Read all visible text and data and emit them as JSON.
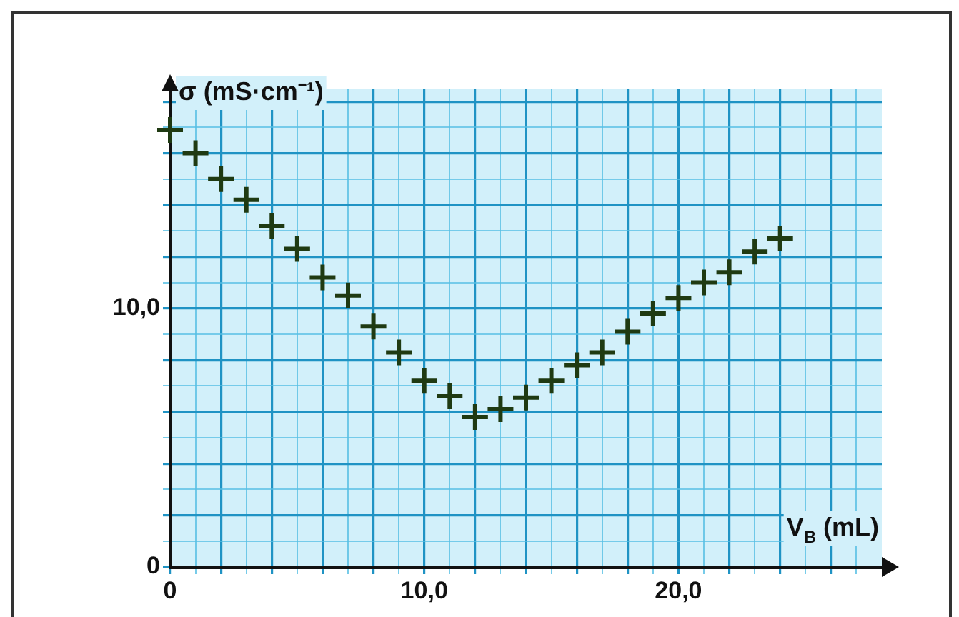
{
  "chart_data": {
    "type": "scatter",
    "xlabel": "V$_{B}$ (mL)",
    "ylabel": "σ (mS·cm⁻¹)",
    "x": [
      0,
      1,
      2,
      3,
      4,
      5,
      6,
      7,
      8,
      9,
      10,
      11,
      12,
      13,
      14,
      15,
      16,
      17,
      18,
      19,
      20,
      21,
      22,
      23,
      24
    ],
    "series": [
      {
        "color": "#1f3a12",
        "values": [
          16.9,
          16.0,
          15.0,
          14.2,
          13.2,
          12.3,
          11.2,
          10.5,
          9.3,
          8.3,
          7.2,
          6.6,
          5.8,
          6.1,
          6.55,
          7.2,
          7.8,
          8.3,
          9.1,
          9.8,
          10.4,
          11.0,
          11.4,
          12.2,
          12.7
        ]
      }
    ],
    "xlim": [
      0,
      28
    ],
    "ylim": [
      0,
      18.5
    ],
    "xticks": [
      0,
      {
        "value": 1,
        "label": null
      },
      {
        "value": 2,
        "label": null
      },
      {
        "value": 3,
        "label": null
      },
      {
        "value": 4,
        "label": null
      },
      {
        "value": 5,
        "label": null
      },
      {
        "value": 6,
        "label": null
      },
      {
        "value": 7,
        "label": null
      },
      {
        "value": 8,
        "label": null
      },
      {
        "value": 9,
        "label": null
      },
      {
        "value": 10,
        "label": "10,0"
      },
      {
        "value": 11,
        "label": null
      },
      {
        "value": 12,
        "label": null
      },
      {
        "value": 13,
        "label": null
      },
      {
        "value": 14,
        "label": null
      },
      {
        "value": 15,
        "label": null
      },
      {
        "value": 16,
        "label": null
      },
      {
        "value": 17,
        "label": null
      },
      {
        "value": 18,
        "label": null
      },
      {
        "value": 19,
        "label": null
      },
      {
        "value": 20,
        "label": "20,0"
      },
      {
        "value": 21,
        "label": null
      },
      {
        "value": 22,
        "label": null
      },
      {
        "value": 23,
        "label": null
      },
      {
        "value": 24,
        "label": null
      },
      {
        "value": 25,
        "label": null
      },
      {
        "value": 26,
        "label": null
      },
      {
        "value": 27,
        "label": null
      }
    ],
    "yticks": [
      0,
      {
        "value": 1,
        "label": null
      },
      {
        "value": 2,
        "label": null
      },
      {
        "value": 3,
        "label": null
      },
      {
        "value": 4,
        "label": null
      },
      {
        "value": 5,
        "label": null
      },
      {
        "value": 6,
        "label": null
      },
      {
        "value": 7,
        "label": null
      },
      {
        "value": 8,
        "label": null
      },
      {
        "value": 9,
        "label": null
      },
      {
        "value": 10,
        "label": "10,0"
      },
      {
        "value": 11,
        "label": null
      },
      {
        "value": 12,
        "label": null
      },
      {
        "value": 13,
        "label": null
      },
      {
        "value": 14,
        "label": null
      },
      {
        "value": 15,
        "label": null
      },
      {
        "value": 16,
        "label": null
      },
      {
        "value": 17,
        "label": null
      },
      {
        "value": 18,
        "label": null
      }
    ],
    "grid": true,
    "marker": "cross",
    "legend": false
  }
}
